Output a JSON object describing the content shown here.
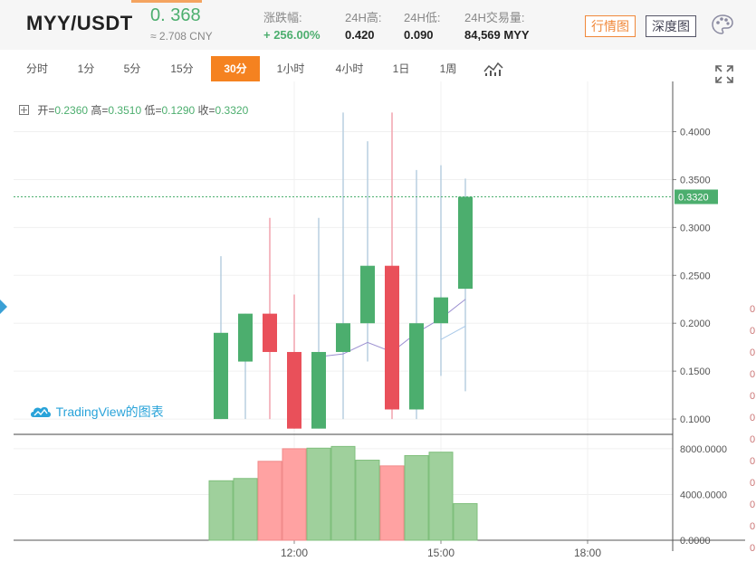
{
  "header": {
    "pair": "MYY/USDT",
    "price": "0. 368",
    "cny": "≈ 2.708 CNY",
    "change_label": "涨跌幅:",
    "change_value": "+ 256.00%",
    "high_label": "24H高:",
    "high_value": "0.420",
    "low_label": "24H低:",
    "low_value": "0.090",
    "volume_label": "24H交易量:",
    "volume_value": "84,569 MYY",
    "btn_market": "行情图",
    "btn_depth": "深度图",
    "palette_icon": "palette-icon"
  },
  "toolbar": {
    "intervals": [
      "分时",
      "1分",
      "5分",
      "15分",
      "30分",
      "1小时",
      "4小时",
      "1日",
      "1周"
    ],
    "active": "30分",
    "indicator_icon": "indicator-icon",
    "expand_icon": "fullscreen-icon"
  },
  "ohlc": {
    "open_label": "开=",
    "open": "0.2360",
    "high_label": "高=",
    "high": "0.3510",
    "low_label": "低=",
    "low": "0.1290",
    "close_label": "收=",
    "close": "0.3320"
  },
  "watermark": "TradingView的图表",
  "chart_data": {
    "type": "candlestick",
    "price_axis": {
      "ticks": [
        "0.4000",
        "0.3500",
        "0.3000",
        "0.2500",
        "0.2000",
        "0.1500",
        "0.1000"
      ],
      "ylim": [
        0.084,
        0.443
      ]
    },
    "volume_axis": {
      "ticks": [
        "8000.0000",
        "4000.0000",
        "0.0000"
      ],
      "ylim": [
        0,
        9100
      ]
    },
    "time_axis": {
      "ticks": [
        "12:00",
        "15:00",
        "18:00"
      ]
    },
    "last_price_label": "0.3320",
    "colors": {
      "up": "#4cae6e",
      "down": "#e9505a",
      "vol_up": "#9fd09c",
      "vol_down": "#ffa2a2"
    },
    "candles": [
      {
        "time": "10:30",
        "open": 0.1,
        "high": 0.27,
        "low": 0.1,
        "close": 0.19,
        "volume": 5200
      },
      {
        "time": "11:00",
        "open": 0.16,
        "high": 0.21,
        "low": 0.1,
        "close": 0.21,
        "volume": 5400
      },
      {
        "time": "11:30",
        "open": 0.21,
        "high": 0.31,
        "low": 0.1,
        "close": 0.17,
        "volume": 6900
      },
      {
        "time": "12:00",
        "open": 0.17,
        "high": 0.23,
        "low": 0.09,
        "close": 0.09,
        "volume": 8000
      },
      {
        "time": "12:30",
        "open": 0.09,
        "high": 0.31,
        "low": 0.09,
        "close": 0.17,
        "volume": 8050
      },
      {
        "time": "13:00",
        "open": 0.17,
        "high": 0.42,
        "low": 0.1,
        "close": 0.2,
        "volume": 8200
      },
      {
        "time": "13:30",
        "open": 0.2,
        "high": 0.39,
        "low": 0.16,
        "close": 0.26,
        "volume": 7000
      },
      {
        "time": "14:00",
        "open": 0.26,
        "high": 0.42,
        "low": 0.1,
        "close": 0.11,
        "volume": 6500
      },
      {
        "time": "14:30",
        "open": 0.11,
        "high": 0.36,
        "low": 0.1,
        "close": 0.2,
        "volume": 7400
      },
      {
        "time": "15:00",
        "open": 0.2,
        "high": 0.365,
        "low": 0.145,
        "close": 0.227,
        "volume": 7700
      },
      {
        "time": "15:30",
        "open": 0.236,
        "high": 0.351,
        "low": 0.129,
        "close": 0.332,
        "volume": 3200
      }
    ],
    "ma_lines": [
      {
        "color": "#9b8fd0",
        "values": [
          null,
          null,
          null,
          null,
          0.165,
          0.168,
          0.18,
          0.17,
          0.19,
          0.205,
          0.225
        ]
      },
      {
        "color": "#a8c8e8",
        "values": [
          null,
          null,
          null,
          null,
          null,
          null,
          null,
          null,
          null,
          0.183,
          0.197
        ]
      }
    ]
  },
  "right_strip": [
    "0",
    "0",
    "0",
    "0",
    "0",
    "0",
    "0",
    "0",
    "0",
    "0",
    "0",
    "0"
  ]
}
